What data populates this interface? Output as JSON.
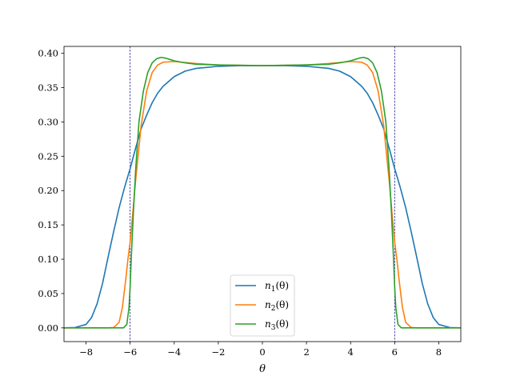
{
  "chart_data": {
    "type": "line",
    "title": "",
    "xlabel": "θ",
    "ylabel": "",
    "xlim": [
      -9,
      9
    ],
    "ylim": [
      -0.02,
      0.41
    ],
    "grid": false,
    "legend_position": "lower-center",
    "x_ticks": [
      -8,
      -6,
      -4,
      -2,
      0,
      2,
      4,
      6,
      8
    ],
    "x_tick_labels": [
      "−8",
      "−6",
      "−4",
      "−2",
      "0",
      "2",
      "4",
      "6",
      "8"
    ],
    "y_ticks": [
      0.0,
      0.05,
      0.1,
      0.15,
      0.2,
      0.25,
      0.3,
      0.35,
      0.4
    ],
    "y_tick_labels": [
      "0.00",
      "0.05",
      "0.10",
      "0.15",
      "0.20",
      "0.25",
      "0.30",
      "0.35",
      "0.40"
    ],
    "reference_lines": [
      {
        "x": -6,
        "style": "dashed",
        "color": "#1f1f8f"
      },
      {
        "x": 6,
        "style": "dashed",
        "color": "#1f1f8f"
      }
    ],
    "series": [
      {
        "name": "n1(θ)",
        "label_base": "n",
        "label_sub": "1",
        "label_arg": "(θ)",
        "color": "#1f77b4",
        "x": [
          -9,
          -8.5,
          -8,
          -7.75,
          -7.5,
          -7.25,
          -7,
          -6.75,
          -6.5,
          -6.25,
          -6,
          -5.75,
          -5.5,
          -5.25,
          -5,
          -4.75,
          -4.5,
          -4,
          -3.5,
          -3,
          -2,
          -1,
          0,
          1,
          2,
          3,
          3.5,
          4,
          4.5,
          4.75,
          5,
          5.25,
          5.5,
          5.75,
          6,
          6.25,
          6.5,
          6.75,
          7,
          7.25,
          7.5,
          7.75,
          8,
          8.5,
          9
        ],
        "y": [
          0.0,
          0.0005,
          0.005,
          0.015,
          0.035,
          0.065,
          0.103,
          0.14,
          0.175,
          0.205,
          0.232,
          0.262,
          0.29,
          0.31,
          0.328,
          0.342,
          0.352,
          0.366,
          0.374,
          0.378,
          0.381,
          0.382,
          0.382,
          0.382,
          0.381,
          0.378,
          0.374,
          0.366,
          0.352,
          0.342,
          0.328,
          0.31,
          0.29,
          0.262,
          0.232,
          0.205,
          0.175,
          0.14,
          0.103,
          0.065,
          0.035,
          0.015,
          0.005,
          0.0005,
          0.0
        ]
      },
      {
        "name": "n2(θ)",
        "label_base": "n",
        "label_sub": "2",
        "label_arg": "(θ)",
        "color": "#ff7f0e",
        "x": [
          -9,
          -7,
          -6.75,
          -6.5,
          -6.35,
          -6.2,
          -6.1,
          -6,
          -5.9,
          -5.75,
          -5.5,
          -5.25,
          -5,
          -4.75,
          -4.5,
          -4,
          -3,
          -2,
          0,
          2,
          3,
          4,
          4.5,
          4.75,
          5,
          5.25,
          5.5,
          5.75,
          5.9,
          6,
          6.1,
          6.2,
          6.35,
          6.5,
          6.75,
          7,
          9
        ],
        "y": [
          0.0,
          0.0,
          0.0005,
          0.008,
          0.03,
          0.07,
          0.1,
          0.125,
          0.16,
          0.215,
          0.295,
          0.345,
          0.372,
          0.383,
          0.387,
          0.388,
          0.385,
          0.383,
          0.382,
          0.383,
          0.385,
          0.388,
          0.387,
          0.383,
          0.372,
          0.345,
          0.295,
          0.215,
          0.16,
          0.125,
          0.1,
          0.07,
          0.03,
          0.008,
          0.0005,
          0.0,
          0.0
        ]
      },
      {
        "name": "n3(θ)",
        "label_base": "n",
        "label_sub": "3",
        "label_arg": "(θ)",
        "color": "#2ca02c",
        "x": [
          -9,
          -6.3,
          -6.15,
          -6.05,
          -6,
          -5.95,
          -5.85,
          -5.75,
          -5.6,
          -5.4,
          -5.2,
          -5,
          -4.8,
          -4.6,
          -4.4,
          -4.2,
          -4,
          -3.5,
          -3,
          -2,
          0,
          2,
          3,
          3.5,
          4,
          4.2,
          4.4,
          4.6,
          4.8,
          5,
          5.2,
          5.4,
          5.6,
          5.75,
          5.85,
          5.95,
          6,
          6.05,
          6.15,
          6.3,
          9
        ],
        "y": [
          0.0,
          0.0,
          0.005,
          0.03,
          0.06,
          0.1,
          0.17,
          0.23,
          0.3,
          0.345,
          0.372,
          0.386,
          0.392,
          0.394,
          0.393,
          0.391,
          0.389,
          0.386,
          0.384,
          0.383,
          0.382,
          0.383,
          0.384,
          0.386,
          0.389,
          0.391,
          0.393,
          0.394,
          0.392,
          0.386,
          0.372,
          0.345,
          0.3,
          0.23,
          0.17,
          0.1,
          0.06,
          0.03,
          0.005,
          0.0,
          0.0
        ]
      }
    ]
  }
}
